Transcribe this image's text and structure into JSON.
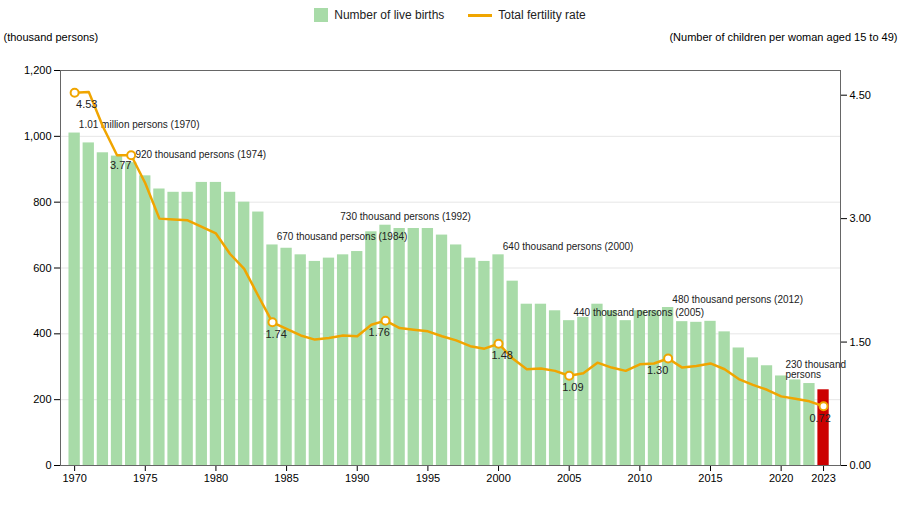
{
  "chart_data": {
    "type": "bar",
    "x": [
      1970,
      1971,
      1972,
      1973,
      1974,
      1975,
      1976,
      1977,
      1978,
      1979,
      1980,
      1981,
      1982,
      1983,
      1984,
      1985,
      1986,
      1987,
      1988,
      1989,
      1990,
      1991,
      1992,
      1993,
      1994,
      1995,
      1996,
      1997,
      1998,
      1999,
      2000,
      2001,
      2002,
      2003,
      2004,
      2005,
      2006,
      2007,
      2008,
      2009,
      2010,
      2011,
      2012,
      2013,
      2014,
      2015,
      2016,
      2017,
      2018,
      2019,
      2020,
      2021,
      2022,
      2023
    ],
    "xlim": [
      1969.0,
      2024.2
    ],
    "xticks": [
      1970,
      1975,
      1980,
      1985,
      1990,
      1995,
      2000,
      2005,
      2010,
      2015,
      2020,
      2023
    ],
    "ylim": [
      0,
      1200
    ],
    "yticks": [
      0,
      200,
      400,
      600,
      800,
      {
        "value": 1000,
        "label": "1,000"
      },
      {
        "value": 1200,
        "label": "1,200"
      }
    ],
    "y2lim": [
      0.0,
      4.8
    ],
    "y2ticks": [
      {
        "value": 0.0,
        "label": "0.00"
      },
      {
        "value": 1.5,
        "label": "1.50"
      },
      {
        "value": 3.0,
        "label": "3.00"
      },
      {
        "value": 4.5,
        "label": "4.50"
      }
    ],
    "ylabel": "(thousand persons)",
    "y2label": "(Number of children per woman aged 15 to 49)",
    "grid": true,
    "legend": "top",
    "series": [
      {
        "name": "Number of live births",
        "type": "bar",
        "color": "#a8dba8",
        "colors": [
          "#a8dba8",
          "#a8dba8",
          "#a8dba8",
          "#a8dba8",
          "#a8dba8",
          "#a8dba8",
          "#a8dba8",
          "#a8dba8",
          "#a8dba8",
          "#a8dba8",
          "#a8dba8",
          "#a8dba8",
          "#a8dba8",
          "#a8dba8",
          "#a8dba8",
          "#a8dba8",
          "#a8dba8",
          "#a8dba8",
          "#a8dba8",
          "#a8dba8",
          "#a8dba8",
          "#a8dba8",
          "#a8dba8",
          "#a8dba8",
          "#a8dba8",
          "#a8dba8",
          "#a8dba8",
          "#a8dba8",
          "#a8dba8",
          "#a8dba8",
          "#a8dba8",
          "#a8dba8",
          "#a8dba8",
          "#a8dba8",
          "#a8dba8",
          "#a8dba8",
          "#a8dba8",
          "#a8dba8",
          "#a8dba8",
          "#a8dba8",
          "#a8dba8",
          "#a8dba8",
          "#a8dba8",
          "#a8dba8",
          "#a8dba8",
          "#a8dba8",
          "#a8dba8",
          "#a8dba8",
          "#a8dba8",
          "#a8dba8",
          "#a8dba8",
          "#a8dba8",
          "#a8dba8",
          "#cc0000"
        ],
        "values": [
          1010,
          980,
          950,
          940,
          920,
          880,
          840,
          830,
          830,
          860,
          860,
          830,
          800,
          770,
          670,
          660,
          640,
          620,
          630,
          640,
          650,
          710,
          730,
          720,
          720,
          720,
          700,
          670,
          630,
          620,
          640,
          560,
          490,
          490,
          470,
          440,
          450,
          490,
          470,
          440,
          470,
          470,
          480,
          437,
          435,
          438,
          406,
          357,
          327,
          303,
          272,
          260,
          249,
          230
        ]
      },
      {
        "name": "Total fertility rate",
        "type": "line",
        "axis": "y2",
        "color": "#f0a500",
        "marker": "circle",
        "values": [
          4.53,
          4.54,
          4.12,
          3.77,
          3.77,
          3.43,
          3.0,
          2.99,
          2.98,
          2.9,
          2.82,
          2.57,
          2.39,
          2.06,
          1.74,
          1.66,
          1.58,
          1.53,
          1.55,
          1.58,
          1.57,
          1.71,
          1.76,
          1.67,
          1.65,
          1.63,
          1.57,
          1.52,
          1.45,
          1.42,
          1.48,
          1.3,
          1.17,
          1.18,
          1.15,
          1.09,
          1.12,
          1.25,
          1.19,
          1.15,
          1.23,
          1.24,
          1.3,
          1.19,
          1.21,
          1.24,
          1.17,
          1.05,
          0.98,
          0.92,
          0.84,
          0.81,
          0.78,
          0.72
        ],
        "highlights": [
          {
            "x": 1970,
            "y": 4.53
          },
          {
            "x": 1974,
            "y": 3.77
          },
          {
            "x": 1984,
            "y": 1.74
          },
          {
            "x": 1992,
            "y": 1.76
          },
          {
            "x": 2000,
            "y": 1.48
          },
          {
            "x": 2005,
            "y": 1.09
          },
          {
            "x": 2012,
            "y": 1.3
          },
          {
            "x": 2023,
            "y": 0.72
          }
        ]
      }
    ],
    "annotations": [
      {
        "text": "1.01 million persons (1970)",
        "x": 1970.3,
        "y": 1025
      },
      {
        "text": "920 thousand persons (1974)",
        "x": 1974.3,
        "y": 935
      },
      {
        "text": "670 thousand persons (1984)",
        "x": 1984.3,
        "y": 685
      },
      {
        "text": "730 thousand persons (1992)",
        "x": 1988.8,
        "y": 745
      },
      {
        "text": "640 thousand persons (2000)",
        "x": 2000.3,
        "y": 655
      },
      {
        "text": "440 thousand persons (2005)",
        "x": 2005.3,
        "y": 455
      },
      {
        "text": "480 thousand persons (2012)",
        "x": 2012.3,
        "y": 495
      },
      {
        "text": "230 thousand\npersons",
        "x": 2020.3,
        "y": 265
      },
      {
        "text": "4.53",
        "x": 1970.1,
        "y": 4.35,
        "axis": "y2"
      },
      {
        "text": "3.77",
        "x": 1972.5,
        "y": 3.6,
        "axis": "y2"
      },
      {
        "text": "1.74",
        "x": 1983.5,
        "y": 1.55,
        "axis": "y2"
      },
      {
        "text": "1.76",
        "x": 1990.8,
        "y": 1.57,
        "axis": "y2"
      },
      {
        "text": "1.48",
        "x": 1999.5,
        "y": 1.29,
        "axis": "y2"
      },
      {
        "text": "1.09",
        "x": 2004.5,
        "y": 0.9,
        "axis": "y2"
      },
      {
        "text": "1.30",
        "x": 2010.5,
        "y": 1.11,
        "axis": "y2"
      },
      {
        "text": "0.72",
        "x": 2022.0,
        "y": 0.53,
        "axis": "y2"
      }
    ]
  }
}
